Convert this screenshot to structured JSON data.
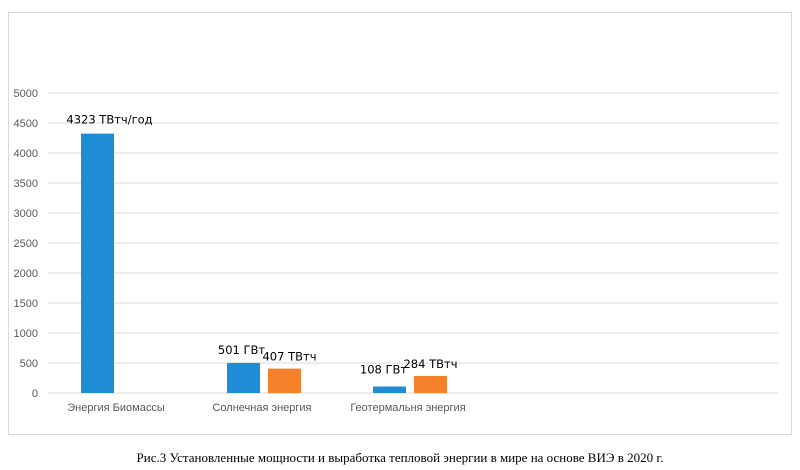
{
  "caption": "Рис.3 Установленные мощности и выработка тепловой энергии в мире на основе ВИЭ в 2020 г.",
  "chart_data": {
    "type": "bar",
    "categories": [
      "Энергия Биомассы",
      "Солнечная энергия",
      "Геотермальня энергия"
    ],
    "series": [
      {
        "color": "#1f8dd6",
        "values": [
          4323,
          501,
          108
        ],
        "labels": [
          "4323 ТВтч/год",
          "501 ГВт",
          "108 ГВт"
        ]
      },
      {
        "color": "#f5822a",
        "values": [
          null,
          407,
          284
        ],
        "labels": [
          "",
          "407 ТВтч",
          "284 ТВтч"
        ]
      }
    ],
    "ylim": [
      0,
      5000
    ],
    "yticks": [
      0,
      500,
      1000,
      1500,
      2000,
      2500,
      3000,
      3500,
      4000,
      4500,
      5000
    ],
    "grid": true,
    "gridColor": "#d9d9d9"
  }
}
